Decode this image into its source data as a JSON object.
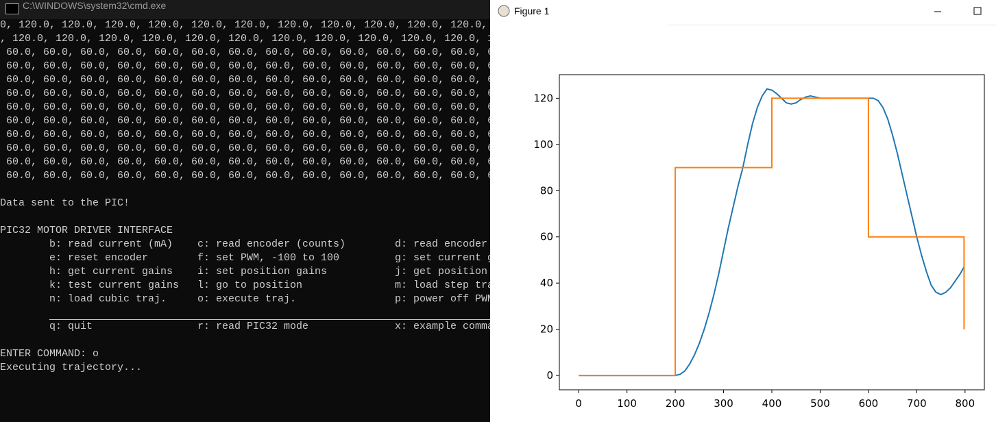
{
  "cmd_window": {
    "title": "C:\\WINDOWS\\system32\\cmd.exe",
    "output_lines": [
      "0, 120.0, 120.0, 120.0, 120.0, 120.0, 120.0, 120.0, 120.0, 120.0, 120.0, 120.0,",
      ", 120.0, 120.0, 120.0, 120.0, 120.0, 120.0, 120.0, 120.0, 120.0, 120.0, 120.0, 1",
      " 60.0, 60.0, 60.0, 60.0, 60.0, 60.0, 60.0, 60.0, 60.0, 60.0, 60.0, 60.0, 60.0, 6",
      " 60.0, 60.0, 60.0, 60.0, 60.0, 60.0, 60.0, 60.0, 60.0, 60.0, 60.0, 60.0, 60.0, 6",
      " 60.0, 60.0, 60.0, 60.0, 60.0, 60.0, 60.0, 60.0, 60.0, 60.0, 60.0, 60.0, 60.0, 6",
      " 60.0, 60.0, 60.0, 60.0, 60.0, 60.0, 60.0, 60.0, 60.0, 60.0, 60.0, 60.0, 60.0, 6",
      " 60.0, 60.0, 60.0, 60.0, 60.0, 60.0, 60.0, 60.0, 60.0, 60.0, 60.0, 60.0, 60.0, 6",
      " 60.0, 60.0, 60.0, 60.0, 60.0, 60.0, 60.0, 60.0, 60.0, 60.0, 60.0, 60.0, 60.0, 6",
      " 60.0, 60.0, 60.0, 60.0, 60.0, 60.0, 60.0, 60.0, 60.0, 60.0, 60.0, 60.0, 60.0, 6",
      " 60.0, 60.0, 60.0, 60.0, 60.0, 60.0, 60.0, 60.0, 60.0, 60.0, 60.0, 60.0, 60.0, 6",
      " 60.0, 60.0, 60.0, 60.0, 60.0, 60.0, 60.0, 60.0, 60.0, 60.0, 60.0, 60.0, 60.0, 6",
      " 60.0, 60.0, 60.0, 60.0, 60.0, 60.0, 60.0, 60.0, 60.0, 60.0, 60.0, 60.0, 60.0, 6"
    ],
    "status": "Data sent to the PIC!",
    "menu_title": "PIC32 MOTOR DRIVER INTERFACE",
    "menu_rows": [
      [
        "b: read current (mA)",
        "c: read encoder (counts)",
        "d: read encoder"
      ],
      [
        "e: reset encoder",
        "f: set PWM, -100 to 100",
        "g: set current g"
      ],
      [
        "h: get current gains",
        "i: set position gains",
        "j: get position"
      ],
      [
        "k: test current gains",
        "l: go to position",
        "m: load step tra"
      ],
      [
        "n: load cubic traj.",
        "o: execute traj.",
        "p: power off PWM"
      ]
    ],
    "menu_footer": [
      "q: quit",
      "r: read PIC32 mode",
      "x: example comma"
    ],
    "prompt": "ENTER COMMAND: o",
    "response": "Executing trajectory..."
  },
  "figure_window": {
    "title": "Figure 1"
  },
  "chart_data": {
    "type": "line",
    "series": [
      {
        "color": "#1f77b4",
        "x": [
          0,
          100,
          200,
          210,
          220,
          230,
          240,
          250,
          260,
          270,
          280,
          290,
          300,
          310,
          320,
          330,
          340,
          350,
          360,
          370,
          380,
          390,
          400,
          410,
          420,
          430,
          440,
          450,
          460,
          470,
          480,
          490,
          500,
          550,
          600,
          610,
          620,
          630,
          640,
          650,
          660,
          670,
          680,
          690,
          700,
          710,
          720,
          730,
          740,
          750,
          760,
          770,
          780,
          790,
          798
        ],
        "values": [
          0,
          0,
          0,
          0.5,
          2,
          5,
          9,
          14,
          20,
          27,
          35,
          44,
          54,
          64,
          73,
          82,
          90,
          100,
          109,
          116,
          121,
          124,
          123.5,
          122,
          120,
          118,
          117.5,
          118,
          119.5,
          120.5,
          121,
          120.5,
          120,
          120,
          120,
          120,
          119,
          116,
          111,
          104,
          96,
          87,
          78,
          69,
          60,
          52,
          45,
          39,
          36,
          35,
          36,
          38,
          41,
          44,
          47
        ]
      },
      {
        "color": "#ff7f0e",
        "x": [
          0,
          200,
          200,
          400,
          400,
          600,
          600,
          798,
          798
        ],
        "values": [
          0,
          0,
          90,
          90,
          120,
          120,
          60,
          60,
          20
        ]
      }
    ],
    "xlim": [
      -40,
      840
    ],
    "ylim": [
      -6.2,
      130.2
    ],
    "xticks": [
      0,
      100,
      200,
      300,
      400,
      500,
      600,
      700,
      800
    ],
    "yticks": [
      0,
      20,
      40,
      60,
      80,
      100,
      120
    ]
  }
}
